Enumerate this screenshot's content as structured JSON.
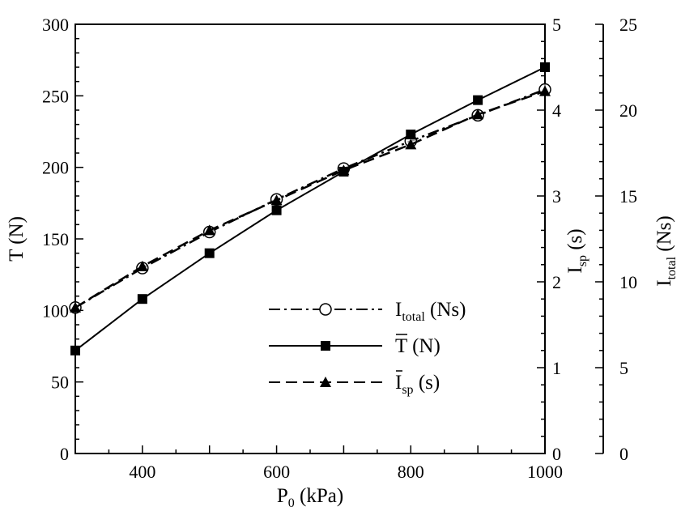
{
  "chart_data": {
    "type": "line",
    "x_axis": {
      "label_main": "P",
      "label_sub": "0",
      "label_unit": " (kPa)",
      "range": [
        300,
        1000
      ],
      "ticks": [
        400,
        600,
        800,
        1000
      ]
    },
    "y_left": {
      "label_main": "T",
      "label_unit": " (N)",
      "range": [
        0,
        300
      ],
      "ticks": [
        0,
        50,
        100,
        150,
        200,
        250,
        300
      ]
    },
    "y_right_1": {
      "label_main": "I",
      "label_sub": "sp",
      "label_unit": " (s)",
      "range": [
        0,
        5
      ],
      "ticks": [
        0,
        1,
        2,
        3,
        4,
        5
      ]
    },
    "y_right_2": {
      "label_main": "I",
      "label_sub": "total",
      "label_unit": " (Ns)",
      "range": [
        0,
        25
      ],
      "ticks": [
        0,
        5,
        10,
        15,
        20,
        25
      ]
    },
    "x": [
      300,
      400,
      500,
      600,
      700,
      800,
      900,
      1000
    ],
    "series": [
      {
        "key": "itotal",
        "axis": "y_right_2",
        "marker": "open-circle",
        "line": "dash-dot",
        "legend_main": "I",
        "legend_sub": "total",
        "legend_unit": " (Ns)",
        "values": [
          8.5,
          10.8,
          12.9,
          14.8,
          16.6,
          18.2,
          19.7,
          21.2
        ]
      },
      {
        "key": "tbar",
        "axis": "y_left",
        "marker": "filled-square",
        "line": "solid",
        "legend_main": "T",
        "legend_unit": " (N)",
        "values": [
          72,
          108,
          140,
          170,
          197,
          223,
          247,
          270
        ]
      },
      {
        "key": "ispbar",
        "axis": "y_right_1",
        "marker": "filled-triangle",
        "line": "dashed",
        "legend_main": "I",
        "legend_sub": "sp",
        "legend_unit": " (s)",
        "values": [
          1.7,
          2.18,
          2.6,
          2.95,
          3.3,
          3.6,
          3.95,
          4.22
        ]
      }
    ]
  }
}
